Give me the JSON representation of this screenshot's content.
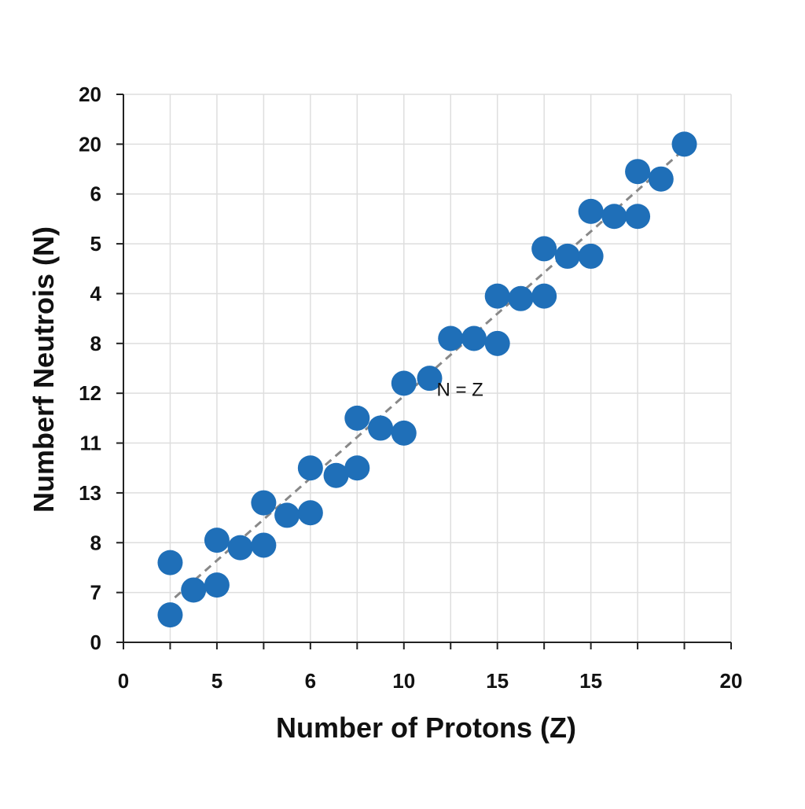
{
  "chart_data": {
    "type": "scatter",
    "xlabel": "Number of Protons (Z)",
    "ylabel": "Numberf Neutrois (N)",
    "xlim": [
      0,
      13
    ],
    "ylim": [
      0,
      11
    ],
    "x_ticks": [
      {
        "pos": 0,
        "label": "0"
      },
      {
        "pos": 1,
        "label": ""
      },
      {
        "pos": 2,
        "label": "5"
      },
      {
        "pos": 3,
        "label": ""
      },
      {
        "pos": 4,
        "label": "6"
      },
      {
        "pos": 5,
        "label": ""
      },
      {
        "pos": 6,
        "label": "10"
      },
      {
        "pos": 7,
        "label": ""
      },
      {
        "pos": 8,
        "label": "15"
      },
      {
        "pos": 9,
        "label": ""
      },
      {
        "pos": 10,
        "label": "15"
      },
      {
        "pos": 11,
        "label": ""
      },
      {
        "pos": 12,
        "label": ""
      },
      {
        "pos": 13,
        "label": "20"
      }
    ],
    "y_ticks": [
      {
        "pos": 0,
        "label": "0"
      },
      {
        "pos": 1,
        "label": "7"
      },
      {
        "pos": 2,
        "label": "8"
      },
      {
        "pos": 3,
        "label": "13"
      },
      {
        "pos": 4,
        "label": "11"
      },
      {
        "pos": 5,
        "label": "12"
      },
      {
        "pos": 6,
        "label": "8"
      },
      {
        "pos": 7,
        "label": "4"
      },
      {
        "pos": 8,
        "label": "5"
      },
      {
        "pos": 9,
        "label": "6"
      },
      {
        "pos": 10,
        "label": "20"
      },
      {
        "pos": 11,
        "label": "20"
      }
    ],
    "grid": true,
    "series": [
      {
        "color": "#1f6fb8",
        "points": [
          {
            "x": 1.0,
            "y": 0.55
          },
          {
            "x": 1.0,
            "y": 1.6
          },
          {
            "x": 1.5,
            "y": 1.05
          },
          {
            "x": 2.0,
            "y": 1.15
          },
          {
            "x": 2.0,
            "y": 2.05
          },
          {
            "x": 2.5,
            "y": 1.9
          },
          {
            "x": 3.0,
            "y": 1.95
          },
          {
            "x": 3.0,
            "y": 2.8
          },
          {
            "x": 3.5,
            "y": 2.55
          },
          {
            "x": 4.0,
            "y": 2.6
          },
          {
            "x": 4.0,
            "y": 3.5
          },
          {
            "x": 4.55,
            "y": 3.35
          },
          {
            "x": 5.0,
            "y": 3.5
          },
          {
            "x": 5.0,
            "y": 4.5
          },
          {
            "x": 5.5,
            "y": 4.3
          },
          {
            "x": 6.0,
            "y": 4.2
          },
          {
            "x": 6.0,
            "y": 5.2
          },
          {
            "x": 6.55,
            "y": 5.3
          },
          {
            "x": 7.0,
            "y": 6.1
          },
          {
            "x": 7.5,
            "y": 6.1
          },
          {
            "x": 8.0,
            "y": 6.0
          },
          {
            "x": 8.0,
            "y": 6.95
          },
          {
            "x": 8.5,
            "y": 6.9
          },
          {
            "x": 9.0,
            "y": 6.95
          },
          {
            "x": 9.0,
            "y": 7.9
          },
          {
            "x": 9.5,
            "y": 7.75
          },
          {
            "x": 10.0,
            "y": 7.75
          },
          {
            "x": 10.0,
            "y": 8.65
          },
          {
            "x": 10.5,
            "y": 8.55
          },
          {
            "x": 11.0,
            "y": 8.55
          },
          {
            "x": 11.0,
            "y": 9.45
          },
          {
            "x": 11.5,
            "y": 9.3
          },
          {
            "x": 12.0,
            "y": 10.0
          }
        ]
      }
    ],
    "reference_line": {
      "label": "N = Z",
      "x1": 1.1,
      "y1": 0.9,
      "x2": 12.0,
      "y2": 9.9,
      "color": "#888888"
    },
    "annotations": [
      {
        "text": "N = Z",
        "x": 7.2,
        "y": 4.95
      }
    ]
  }
}
